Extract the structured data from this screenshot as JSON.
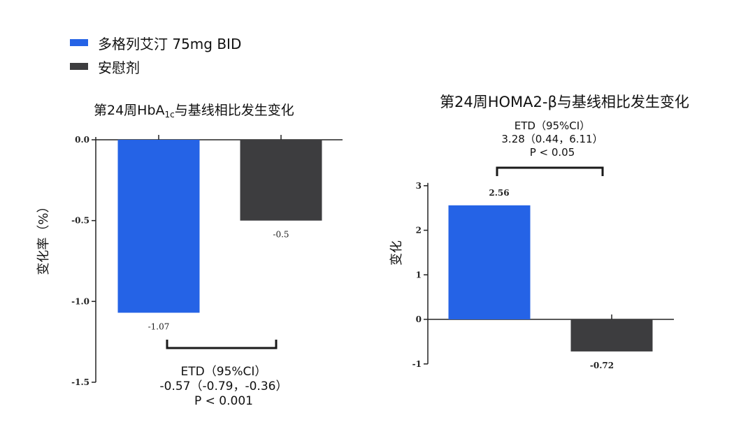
{
  "legend": {
    "items": [
      {
        "label": "多格列艾汀 75mg BID",
        "color": "#2563e6"
      },
      {
        "label": "安慰剂",
        "color": "#3d3d3f"
      }
    ]
  },
  "colors": {
    "drug": "#2563e6",
    "placebo": "#3d3d3f",
    "axis": "#222222"
  },
  "chart_data": [
    {
      "type": "bar",
      "title": "第24周HbA1c与基线相比发生变化",
      "title_parts": {
        "pre": "第24周HbA",
        "sub": "1c",
        "post": "与基线相比发生变化"
      },
      "ylabel": "变化率（%）",
      "xlabel": "",
      "ylim": [
        -1.5,
        0.0
      ],
      "yticks": [
        0.0,
        -0.5,
        -1.0,
        -1.5
      ],
      "ytick_labels": [
        "0.0",
        "-0.5",
        "-1.0",
        "-1.5"
      ],
      "series": [
        {
          "name": "多格列艾汀 75mg BID",
          "value": -1.07,
          "label": "-1.07"
        },
        {
          "name": "安慰剂",
          "value": -0.5,
          "label": "-0.5"
        }
      ],
      "stats": {
        "line1": "ETD（95%CI）",
        "line2": "-0.57（-0.79，-0.36）",
        "line3": "P < 0.001"
      }
    },
    {
      "type": "bar",
      "title": "第24周HOMA2-β与基线相比发生变化",
      "ylabel": "变化",
      "xlabel": "",
      "ylim": [
        -1,
        3
      ],
      "yticks": [
        3,
        2,
        1,
        0,
        -1
      ],
      "ytick_labels": [
        "3",
        "2",
        "1",
        "0",
        "-1"
      ],
      "series": [
        {
          "name": "多格列艾汀 75mg BID",
          "value": 2.56,
          "label": "2.56"
        },
        {
          "name": "安慰剂",
          "value": -0.72,
          "label": "-0.72"
        }
      ],
      "stats": {
        "line1": "ETD（95%CI）",
        "line2": "3.28（0.44，6.11）",
        "line3": "P < 0.05"
      }
    }
  ]
}
